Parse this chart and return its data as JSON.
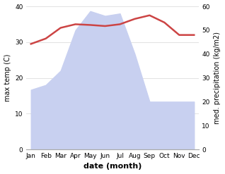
{
  "months": [
    "Jan",
    "Feb",
    "Mar",
    "Apr",
    "May",
    "Jun",
    "Jul",
    "Aug",
    "Sep",
    "Oct",
    "Nov",
    "Dec"
  ],
  "temperature": [
    29.5,
    31.0,
    34.0,
    35.0,
    34.8,
    34.5,
    35.0,
    36.5,
    37.5,
    35.5,
    32.0,
    32.0
  ],
  "precipitation": [
    25,
    27,
    33,
    50,
    58,
    56,
    57,
    40,
    20,
    20,
    20,
    20
  ],
  "temp_color": "#cc4444",
  "precip_fill_color": "#c8d0f0",
  "temp_ylim": [
    0,
    40
  ],
  "precip_ylim": [
    0,
    60
  ],
  "xlabel": "date (month)",
  "ylabel_left": "max temp (C)",
  "ylabel_right": "med. precipitation (kg/m2)",
  "bg_color": "#ffffff",
  "temp_linewidth": 1.8
}
